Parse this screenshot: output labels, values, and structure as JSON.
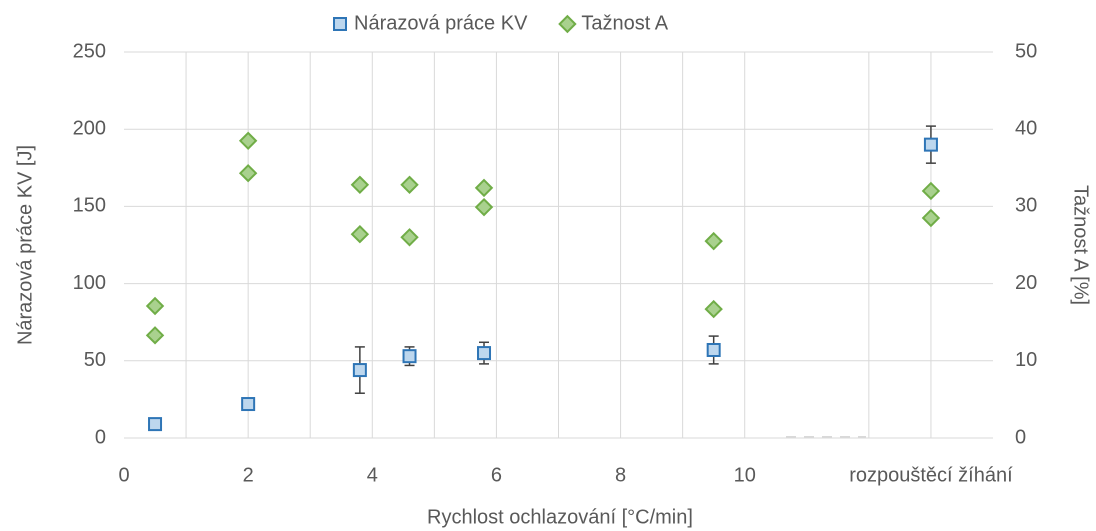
{
  "chart_data": {
    "type": "scatter",
    "xlabel": "Rychlost ochlazování [°C/min]",
    "ylabel": "Nárazová práce KV [J]",
    "y2label": "Tažnost A [%]",
    "xlim": [
      0,
      14
    ],
    "xticks": [
      0,
      2,
      4,
      6,
      8,
      10,
      {
        "value": 13,
        "label": "rozpouštěcí žíhání"
      }
    ],
    "xgrid": [
      1,
      2,
      3,
      4,
      5,
      6,
      7,
      8,
      9,
      10,
      12,
      13
    ],
    "ylim": [
      0,
      250
    ],
    "yticks": [
      0,
      50,
      100,
      150,
      200,
      250
    ],
    "y2lim": [
      0,
      50
    ],
    "y2ticks": [
      0,
      10,
      20,
      30,
      40,
      50
    ],
    "grid": true,
    "legend": "top",
    "series": [
      {
        "name": "Nárazová práce KV",
        "marker": "square",
        "color": "#bdd7ee",
        "edgecolor": "#2e75b6",
        "x": [
          0.5,
          2,
          3.8,
          4.6,
          5.8,
          9.5,
          13
        ],
        "values": [
          9,
          22,
          44,
          53,
          55,
          57,
          190
        ],
        "errors": [
          1,
          1,
          15,
          6,
          7,
          9,
          12
        ]
      },
      {
        "name": "Tažnost A",
        "marker": "diamond",
        "color": "#a9d18e",
        "edgecolor": "#70ad47",
        "axis": "y2",
        "x": [
          0.5,
          0.5,
          2,
          2,
          3.8,
          3.8,
          4.6,
          4.6,
          5.8,
          5.8,
          9.5,
          9.5,
          13,
          13
        ],
        "values": [
          17.1,
          13.3,
          38.5,
          34.3,
          32.8,
          26.4,
          32.8,
          26.0,
          32.4,
          29.9,
          25.5,
          16.7,
          32.0,
          28.5
        ]
      }
    ]
  }
}
